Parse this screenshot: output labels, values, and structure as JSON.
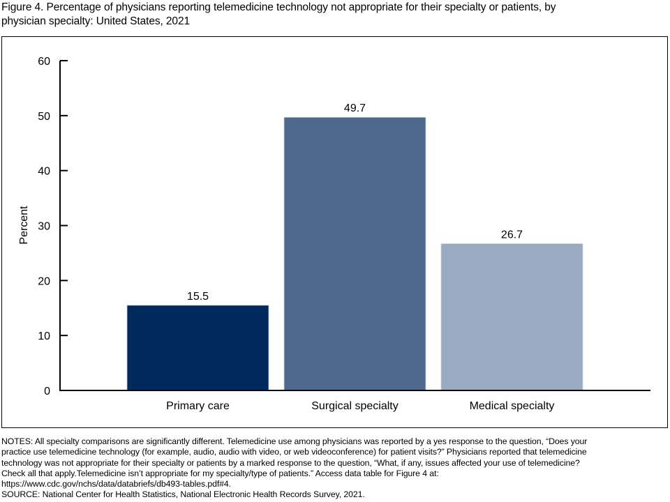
{
  "title_lines": [
    "Figure 4. Percentage of physicians reporting telemedicine technology not appropriate for their specialty or patients, by",
    "physician specialty: United States, 2021"
  ],
  "chart_data": {
    "type": "bar",
    "title": "Figure 4. Percentage of physicians reporting telemedicine technology not appropriate for their specialty or patients, by physician specialty: United States, 2021",
    "categories": [
      "Primary care",
      "Surgical specialty",
      "Medical specialty"
    ],
    "values": [
      15.5,
      49.7,
      26.7
    ],
    "value_labels": [
      "15.5",
      "49.7",
      "26.7"
    ],
    "colors": [
      "#002a5c",
      "#4e698c",
      "#9aaac0"
    ],
    "xlabel": "",
    "ylabel": "Percent",
    "ylim": [
      0,
      60
    ],
    "yticks": [
      0,
      10,
      20,
      30,
      40,
      50,
      60
    ],
    "ytick_labels": [
      "0",
      "10",
      "20",
      "30",
      "40",
      "50",
      "60"
    ],
    "grid": false
  },
  "notes_lines": [
    "NOTES: All specialty comparisons are significantly different. Telemedicine use among physicians was reported by a yes response to the question, “Does your",
    "practice use telemedicine technology (for example, audio, audio with video, or web videoconference) for patient visits?” Physicians reported that telemedicine",
    "technology was not appropriate for their specialty or patients by a marked  response to the question, “What, if any, issues affected your use of telemedicine?",
    "Check all that apply.Telemedicine isn’t appropriate for my specialty/type of patients.” Access data table for Figure 4 at:",
    "https://www.cdc.gov/nchs/data/databriefs/db493-tables.pdf#4.",
    "SOURCE: National Center for Health Statistics, National Electronic Health Records Survey, 2021."
  ]
}
